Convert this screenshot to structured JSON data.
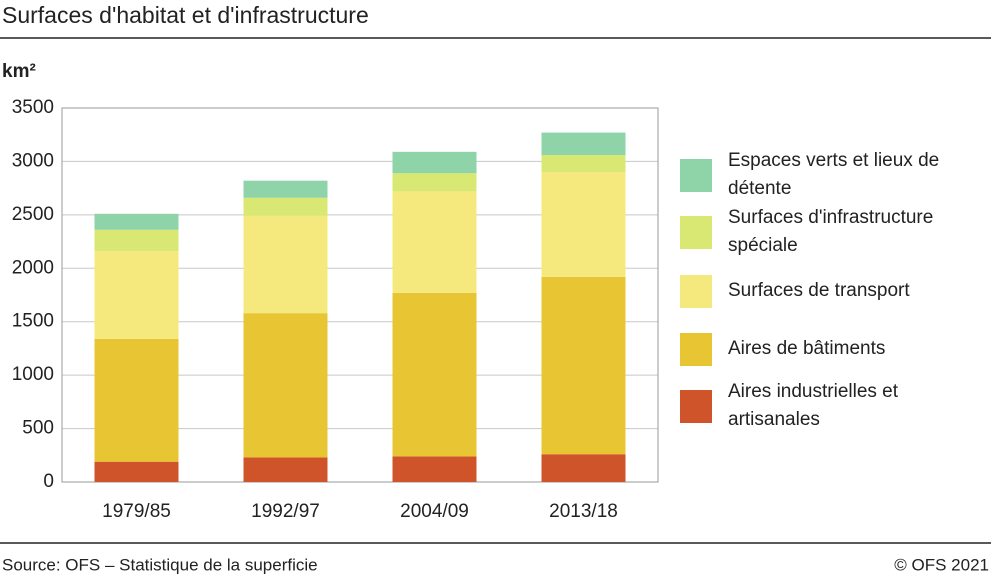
{
  "chart_data": {
    "type": "stacked_bar",
    "title": "Surfaces d'habitat et d'infrastructure",
    "y_label": "km²",
    "categories": [
      "1979/85",
      "1992/97",
      "2004/09",
      "2013/18"
    ],
    "series": [
      {
        "name": "Aires industrielles et artisanales",
        "color": "#cf5429",
        "values": [
          190,
          230,
          240,
          260
        ]
      },
      {
        "name": "Aires de bâtiments",
        "color": "#e8c532",
        "values": [
          1150,
          1350,
          1530,
          1660
        ]
      },
      {
        "name": "Surfaces de transport",
        "color": "#f5e87c",
        "values": [
          820,
          910,
          950,
          980
        ]
      },
      {
        "name": "Surfaces d'infrastructure spéciale",
        "color": "#d8e873",
        "values": [
          200,
          170,
          170,
          160
        ]
      },
      {
        "name": "Espaces verts et lieux de détente",
        "color": "#8fd3a8",
        "values": [
          150,
          160,
          200,
          210
        ]
      }
    ],
    "ylim": [
      0,
      3500
    ],
    "yticks": [
      0,
      500,
      1000,
      1500,
      2000,
      2500,
      3000,
      3500
    ],
    "grid": true,
    "source": "Source: OFS – Statistique de la superficie",
    "copyright": "© OFS 2021"
  }
}
